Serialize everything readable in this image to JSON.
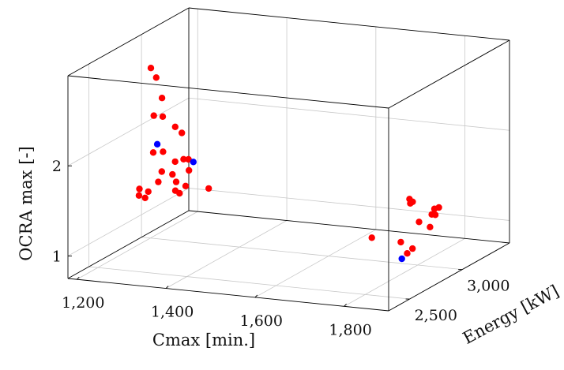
{
  "chart_data": {
    "type": "scatter",
    "title": "",
    "xlabel": "Cmax [min.]",
    "ylabel": "Energy [kW]",
    "zlabel": "OCRA max [-]",
    "xlim": [
      1180,
      1900
    ],
    "ylim": [
      2300,
      3450
    ],
    "zlim": [
      0.75,
      3.0
    ],
    "x_ticks": [
      {
        "value": 1200,
        "label": "1,200"
      },
      {
        "value": 1400,
        "label": "1,400"
      },
      {
        "value": 1600,
        "label": "1,600"
      },
      {
        "value": 1800,
        "label": "1,800"
      }
    ],
    "y_ticks": [
      {
        "value": 2500,
        "label": "2,500"
      },
      {
        "value": 3000,
        "label": "3,000"
      }
    ],
    "z_ticks": [
      {
        "value": 1,
        "label": "1"
      },
      {
        "value": 2,
        "label": "2"
      }
    ],
    "grid": true,
    "colors": {
      "series_a": "#ff0000",
      "series_b": "#0000ff",
      "frame": "#000000",
      "grid": "#c8c8c8"
    },
    "series": [
      {
        "color": "#ff0000",
        "points": [
          [
            1220,
            2920,
            2.7
          ],
          [
            1232,
            2920,
            2.6
          ],
          [
            1245,
            2920,
            2.38
          ],
          [
            1210,
            2990,
            2.12
          ],
          [
            1230,
            2990,
            2.12
          ],
          [
            1258,
            2990,
            2.02
          ],
          [
            1273,
            2990,
            1.96
          ],
          [
            1230,
            2900,
            1.78
          ],
          [
            1252,
            2900,
            1.8
          ],
          [
            1298,
            2900,
            1.74
          ],
          [
            1272,
            2930,
            1.68
          ],
          [
            1302,
            2930,
            1.72
          ],
          [
            1268,
            2820,
            1.64
          ],
          [
            1292,
            2820,
            1.62
          ],
          [
            1322,
            2850,
            1.66
          ],
          [
            1272,
            2770,
            1.56
          ],
          [
            1312,
            2770,
            1.58
          ],
          [
            1322,
            2720,
            1.52
          ],
          [
            1338,
            2750,
            1.56
          ],
          [
            1348,
            2650,
            1.55
          ],
          [
            1378,
            2800,
            1.52
          ],
          [
            1272,
            2590,
            1.6
          ],
          [
            1292,
            2590,
            1.58
          ],
          [
            1278,
            2560,
            1.55
          ],
          [
            1292,
            2560,
            1.53
          ],
          [
            1790,
            2965,
            1.5
          ],
          [
            1790,
            2995,
            1.45
          ],
          [
            1800,
            2930,
            1.48
          ],
          [
            1840,
            2990,
            1.4
          ],
          [
            1850,
            2990,
            1.42
          ],
          [
            1860,
            2880,
            1.42
          ],
          [
            1868,
            2880,
            1.42
          ],
          [
            1855,
            2780,
            1.4
          ],
          [
            1875,
            2800,
            1.34
          ],
          [
            1782,
            2640,
            1.28
          ],
          [
            1840,
            2670,
            1.24
          ],
          [
            1878,
            2620,
            1.22
          ],
          [
            1878,
            2570,
            1.2
          ]
        ]
      },
      {
        "color": "#0000ff",
        "points": [
          [
            1246,
            2870,
            1.9
          ],
          [
            1320,
            2900,
            1.72
          ],
          [
            1880,
            2510,
            1.18
          ]
        ]
      }
    ]
  }
}
